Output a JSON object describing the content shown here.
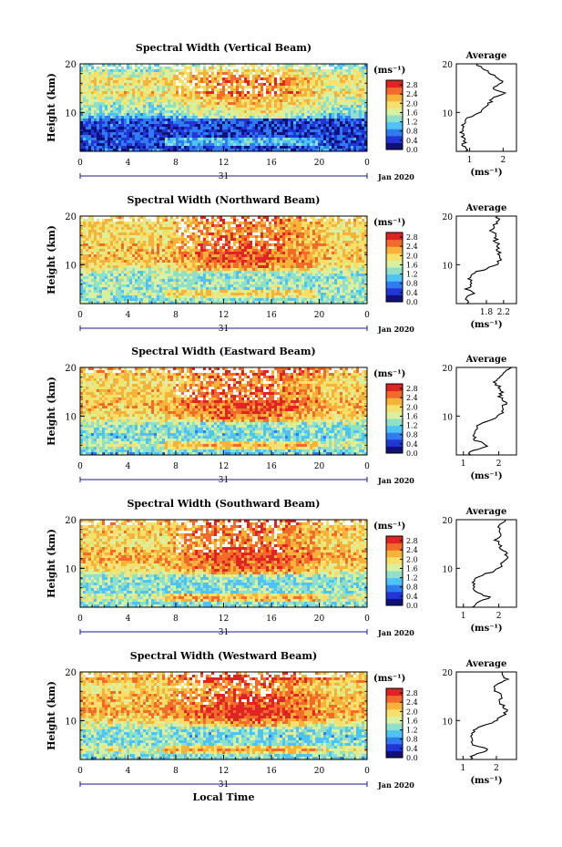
{
  "figure": {
    "xlabel": "Local Time",
    "date_label": "Jan 2020",
    "day_label": "31",
    "ylabel": "Height (km)",
    "cbar_unit": "(ms⁻¹)",
    "avg_title": "Average",
    "avg_xlabel": "(ms⁻¹)",
    "x_ticks": [
      "0",
      "4",
      "8",
      "12",
      "16",
      "20",
      "0"
    ],
    "y_ticks": [
      "20",
      "10"
    ],
    "cbar_ticks": [
      "2.8",
      "2.4",
      "2.0",
      "1.6",
      "1.2",
      "0.8",
      "0.4",
      "0.0"
    ],
    "colors": [
      "#10107a",
      "#2236d8",
      "#2f7cf0",
      "#4fc3f7",
      "#8fe0c8",
      "#d8f0a0",
      "#f6e06a",
      "#f7b23a",
      "#f26b2a",
      "#e02424"
    ]
  },
  "chart_data": [
    {
      "type": "heatmap",
      "title": "Spectral Width (Vertical Beam)",
      "xlim": [
        0,
        24
      ],
      "ylim": [
        2,
        20
      ],
      "zlim": [
        0,
        3.0
      ],
      "profile": {
        "heights": [
          20,
          18.5,
          17,
          16,
          15,
          14,
          13,
          12,
          11,
          10,
          9.5,
          9,
          8.5,
          8,
          7,
          6,
          5,
          4,
          3,
          2.5
        ],
        "x": [
          1.2,
          1.5,
          1.9,
          2.0,
          1.6,
          2.1,
          1.7,
          1.6,
          1.4,
          1.3,
          1.1,
          1.0,
          0.9,
          0.85,
          0.8,
          0.75,
          0.8,
          0.85,
          0.8,
          0.9
        ],
        "xticks": [
          "1",
          "2"
        ],
        "xlim": [
          0.6,
          2.4
        ]
      }
    },
    {
      "type": "heatmap",
      "title": "Spectral Width (Northward Beam)",
      "xlim": [
        0,
        24
      ],
      "ylim": [
        2,
        20
      ],
      "zlim": [
        0,
        3.0
      ],
      "profile": {
        "heights": [
          20,
          18.5,
          17,
          16,
          15,
          14,
          13,
          12,
          11,
          10,
          9.5,
          9,
          8.5,
          8,
          7,
          6,
          5,
          4,
          3,
          2.5
        ],
        "x": [
          2.1,
          2.0,
          1.9,
          2.05,
          2.0,
          2.1,
          2.05,
          2.1,
          2.15,
          2.0,
          1.9,
          1.75,
          1.55,
          1.45,
          1.4,
          1.45,
          1.35,
          1.5,
          1.3,
          1.4
        ],
        "xticks": [
          "1.8",
          "2.2"
        ],
        "xlim": [
          1.1,
          2.5
        ]
      }
    },
    {
      "type": "heatmap",
      "title": "Spectral Width (Eastward Beam)",
      "xlim": [
        0,
        24
      ],
      "ylim": [
        2,
        20
      ],
      "zlim": [
        0,
        3.0
      ],
      "profile": {
        "heights": [
          20,
          18.5,
          17,
          16,
          15,
          14,
          13,
          12,
          11,
          10,
          9.5,
          9,
          8.5,
          8,
          7,
          6,
          5,
          4,
          3,
          2.5
        ],
        "x": [
          2.3,
          2.1,
          1.9,
          2.0,
          2.1,
          2.0,
          2.2,
          2.15,
          2.1,
          2.0,
          1.9,
          1.7,
          1.5,
          1.4,
          1.3,
          1.25,
          1.35,
          1.7,
          1.3,
          1.2
        ],
        "xticks": [
          "1",
          "2"
        ],
        "xlim": [
          0.8,
          2.5
        ]
      }
    },
    {
      "type": "heatmap",
      "title": "Spectral Width (Southward Beam)",
      "xlim": [
        0,
        24
      ],
      "ylim": [
        2,
        20
      ],
      "zlim": [
        0,
        3.0
      ],
      "profile": {
        "heights": [
          20,
          18.5,
          17,
          16,
          15,
          14,
          13,
          12,
          11,
          10,
          9.5,
          9,
          8.5,
          8,
          7,
          6,
          5,
          4,
          3,
          2.5
        ],
        "x": [
          2.2,
          2.0,
          2.1,
          1.9,
          2.0,
          2.1,
          2.2,
          2.25,
          2.1,
          2.0,
          1.9,
          1.7,
          1.5,
          1.4,
          1.3,
          1.3,
          1.35,
          1.75,
          1.4,
          1.3
        ],
        "xticks": [
          "1",
          "2"
        ],
        "xlim": [
          0.8,
          2.5
        ]
      }
    },
    {
      "type": "heatmap",
      "title": "Spectral Width (Westward Beam)",
      "xlim": [
        0,
        24
      ],
      "ylim": [
        2,
        20
      ],
      "zlim": [
        0,
        3.0
      ],
      "profile": {
        "heights": [
          20,
          18.5,
          17,
          16,
          15,
          14,
          13,
          12,
          11,
          10,
          9.5,
          9,
          8.5,
          8,
          7,
          6,
          5,
          4,
          3,
          2.5
        ],
        "x": [
          2.1,
          2.3,
          1.9,
          2.0,
          2.2,
          2.1,
          2.2,
          2.3,
          2.2,
          2.0,
          1.85,
          1.65,
          1.45,
          1.35,
          1.25,
          1.3,
          1.3,
          1.8,
          1.35,
          1.25
        ],
        "xticks": [
          "1",
          "2"
        ],
        "xlim": [
          0.8,
          2.6
        ]
      }
    }
  ]
}
